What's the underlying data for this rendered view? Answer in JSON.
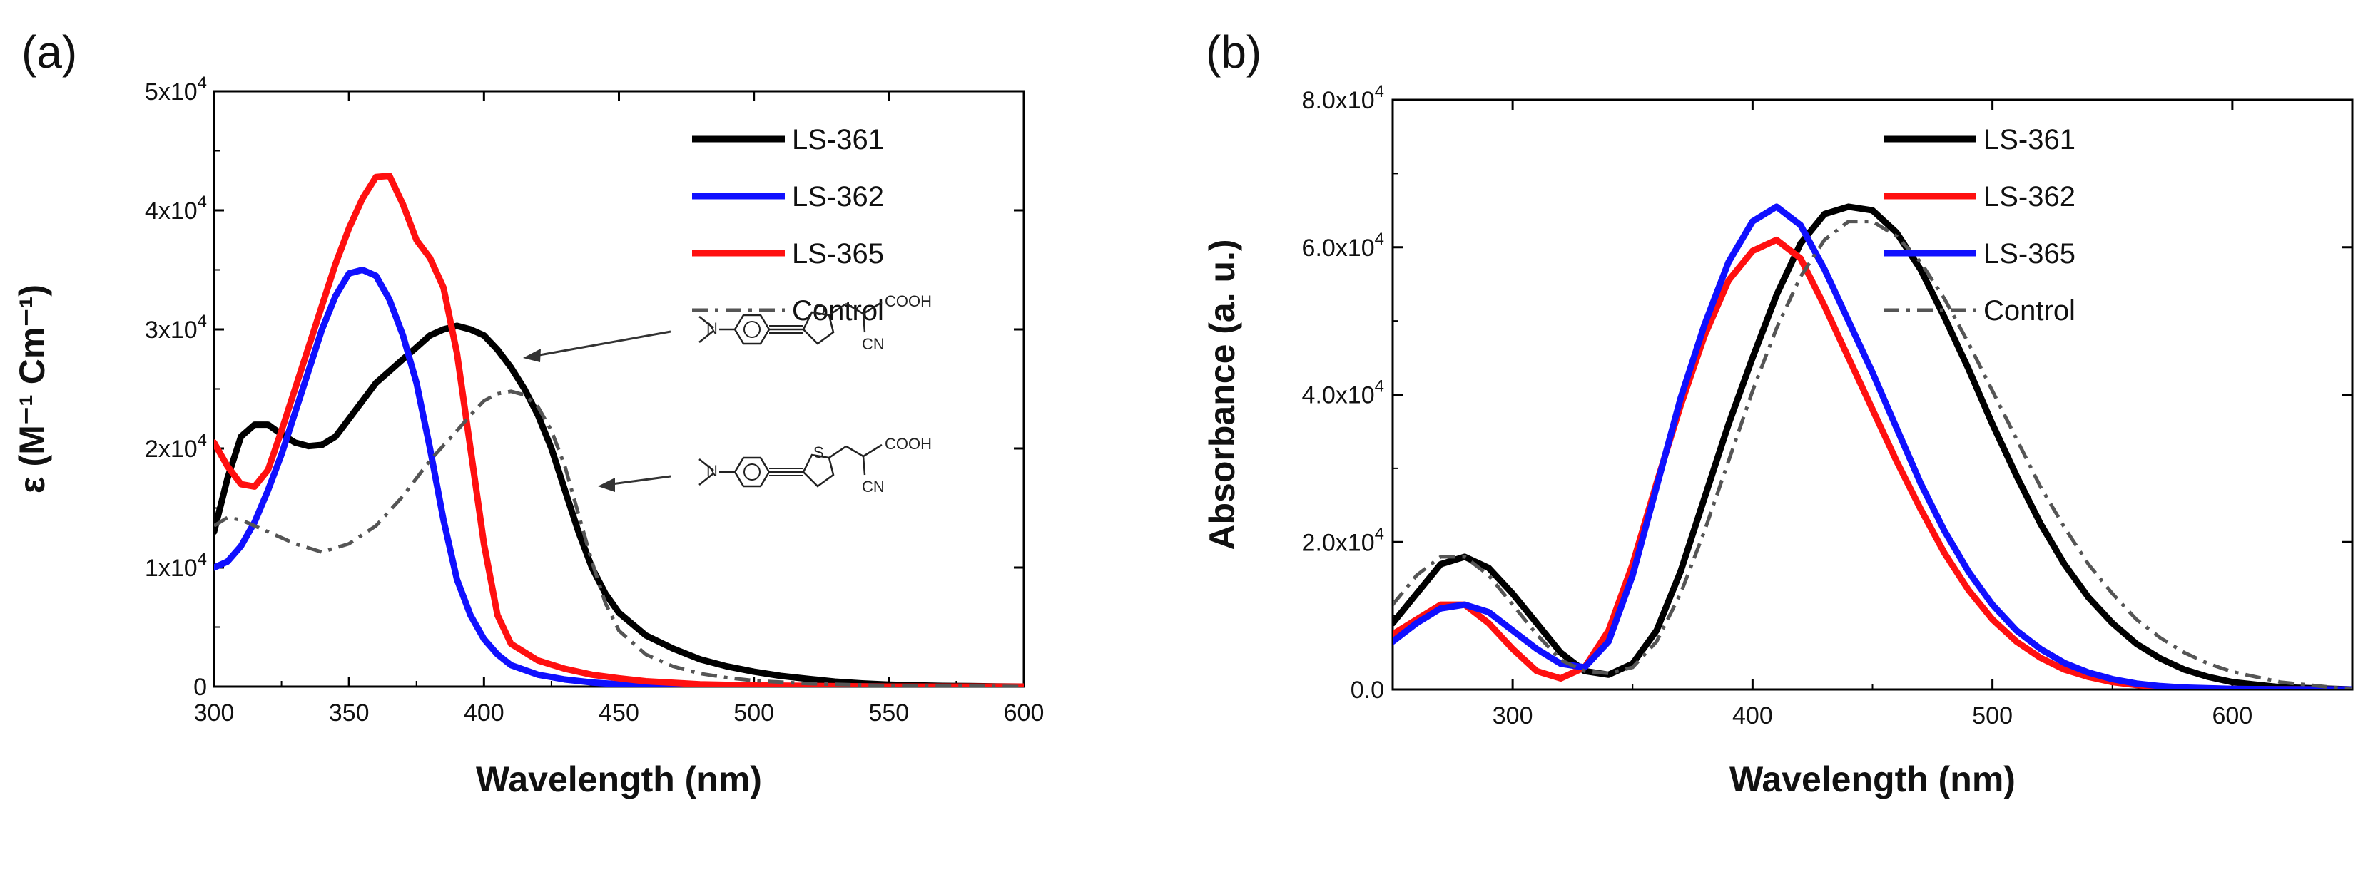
{
  "chart_data": [
    {
      "panel": "(a)",
      "type": "line",
      "xlabel": "Wavelength (nm)",
      "ylabel": "ε (M⁻¹ Cm⁻¹)",
      "xlim": [
        300,
        600
      ],
      "ylim": [
        0,
        50000
      ],
      "x_ticks": [
        300,
        350,
        400,
        450,
        500,
        550,
        600
      ],
      "x_tick_labels": [
        "300",
        "350",
        "400",
        "450",
        "500",
        "550",
        "600"
      ],
      "y_ticks": [
        0,
        10000,
        20000,
        30000,
        40000,
        50000
      ],
      "y_tick_labels": [
        {
          "base": "0",
          "exp": ""
        },
        {
          "base": "1x10",
          "exp": "4"
        },
        {
          "base": "2x10",
          "exp": "4"
        },
        {
          "base": "3x10",
          "exp": "4"
        },
        {
          "base": "4x10",
          "exp": "4"
        },
        {
          "base": "5x10",
          "exp": "4"
        }
      ],
      "legend_position": "top-right",
      "series": [
        {
          "name": "LS-361",
          "color": "#000000",
          "style": "solid",
          "x": [
            300,
            305,
            310,
            315,
            320,
            325,
            330,
            335,
            340,
            345,
            350,
            355,
            360,
            365,
            370,
            375,
            380,
            385,
            390,
            395,
            400,
            405,
            410,
            415,
            420,
            425,
            430,
            435,
            440,
            445,
            450,
            460,
            470,
            480,
            490,
            500,
            510,
            520,
            530,
            540,
            550,
            560,
            570,
            580,
            590,
            600
          ],
          "y": [
            13000,
            17500,
            21000,
            22000,
            22000,
            21200,
            20500,
            20200,
            20300,
            21000,
            22500,
            24000,
            25500,
            26500,
            27500,
            28500,
            29500,
            30000,
            30300,
            30000,
            29500,
            28300,
            26800,
            25000,
            22800,
            20000,
            16500,
            13000,
            10000,
            7800,
            6200,
            4300,
            3200,
            2300,
            1700,
            1250,
            900,
            650,
            420,
            270,
            170,
            100,
            60,
            40,
            20,
            0
          ]
        },
        {
          "name": "LS-362",
          "color": "#1010ff",
          "style": "solid",
          "x": [
            300,
            305,
            310,
            315,
            320,
            325,
            330,
            335,
            340,
            345,
            350,
            355,
            360,
            365,
            370,
            375,
            380,
            385,
            390,
            395,
            400,
            405,
            410,
            420,
            430,
            440,
            450,
            460,
            480,
            500,
            550,
            600
          ],
          "y": [
            10000,
            10500,
            11800,
            13800,
            16500,
            19500,
            23000,
            26500,
            30000,
            32800,
            34700,
            35000,
            34500,
            32500,
            29500,
            25500,
            20000,
            14000,
            9000,
            6000,
            4000,
            2700,
            1800,
            1000,
            600,
            350,
            200,
            120,
            60,
            30,
            0,
            0
          ]
        },
        {
          "name": "LS-365",
          "color": "#ff1010",
          "style": "solid",
          "x": [
            300,
            305,
            310,
            315,
            320,
            325,
            330,
            335,
            340,
            345,
            350,
            355,
            360,
            365,
            370,
            375,
            380,
            385,
            390,
            395,
            400,
            405,
            410,
            420,
            430,
            440,
            450,
            460,
            480,
            500,
            550,
            600
          ],
          "y": [
            20500,
            18500,
            17000,
            16800,
            18200,
            21500,
            25000,
            28500,
            32000,
            35500,
            38500,
            41000,
            42800,
            42900,
            40500,
            37500,
            36000,
            33500,
            28000,
            20000,
            12000,
            6000,
            3600,
            2200,
            1500,
            1000,
            700,
            450,
            200,
            100,
            0,
            0
          ]
        },
        {
          "name": "Control",
          "color": "#555555",
          "style": "dashdot",
          "x": [
            300,
            305,
            310,
            320,
            330,
            340,
            350,
            360,
            370,
            380,
            390,
            395,
            400,
            405,
            410,
            415,
            420,
            425,
            430,
            435,
            440,
            445,
            450,
            460,
            470,
            480,
            490,
            500,
            520,
            550,
            600
          ],
          "y": [
            13500,
            14200,
            14000,
            13000,
            12000,
            11300,
            12000,
            13500,
            16000,
            19000,
            21500,
            22800,
            24000,
            24600,
            24800,
            24500,
            23500,
            21500,
            18500,
            14500,
            10500,
            7000,
            4700,
            2700,
            1700,
            1100,
            750,
            500,
            250,
            80,
            0
          ]
        }
      ]
    },
    {
      "panel": "(b)",
      "type": "line",
      "xlabel": "Wavelength (nm)",
      "ylabel": "Absorbance (a. u.)",
      "xlim": [
        250,
        650
      ],
      "ylim": [
        0,
        80000
      ],
      "x_ticks": [
        300,
        400,
        500,
        600
      ],
      "x_tick_labels": [
        "300",
        "400",
        "500",
        "600"
      ],
      "y_ticks": [
        0,
        20000,
        40000,
        60000,
        80000
      ],
      "y_tick_labels": [
        {
          "base": "0.0",
          "exp": ""
        },
        {
          "base": "2.0x10",
          "exp": "4"
        },
        {
          "base": "4.0x10",
          "exp": "4"
        },
        {
          "base": "6.0x10",
          "exp": "4"
        },
        {
          "base": "8.0x10",
          "exp": "4"
        }
      ],
      "legend_position": "top-right",
      "series": [
        {
          "name": "LS-361",
          "color": "#000000",
          "style": "solid",
          "x": [
            250,
            260,
            270,
            280,
            290,
            300,
            310,
            320,
            330,
            340,
            350,
            360,
            370,
            380,
            390,
            400,
            410,
            420,
            430,
            440,
            450,
            460,
            470,
            480,
            490,
            500,
            510,
            520,
            530,
            540,
            550,
            560,
            570,
            580,
            590,
            600,
            620,
            650
          ],
          "y": [
            9000,
            13000,
            17000,
            18000,
            16500,
            13000,
            9000,
            5000,
            2500,
            2000,
            3500,
            8000,
            16000,
            26000,
            36000,
            45000,
            53500,
            60500,
            64500,
            65500,
            65000,
            62000,
            57000,
            50500,
            43500,
            36000,
            29000,
            22500,
            17000,
            12500,
            9000,
            6200,
            4200,
            2700,
            1700,
            1000,
            300,
            0
          ]
        },
        {
          "name": "LS-362",
          "color": "#ff1010",
          "style": "solid",
          "x": [
            250,
            260,
            270,
            280,
            290,
            300,
            310,
            320,
            330,
            340,
            350,
            360,
            370,
            380,
            390,
            400,
            410,
            420,
            430,
            440,
            450,
            460,
            470,
            480,
            490,
            500,
            510,
            520,
            530,
            540,
            550,
            560,
            570,
            580,
            600,
            620,
            650
          ],
          "y": [
            7500,
            9500,
            11500,
            11500,
            9000,
            5500,
            2500,
            1500,
            3000,
            8000,
            17000,
            28000,
            38500,
            48000,
            55500,
            59500,
            61000,
            58500,
            52000,
            45000,
            38000,
            31000,
            24500,
            18500,
            13500,
            9500,
            6500,
            4300,
            2700,
            1700,
            1000,
            600,
            350,
            200,
            60,
            20,
            0
          ]
        },
        {
          "name": "LS-365",
          "color": "#1010ff",
          "style": "solid",
          "x": [
            250,
            260,
            270,
            280,
            290,
            300,
            310,
            320,
            330,
            340,
            350,
            360,
            370,
            380,
            390,
            400,
            410,
            420,
            430,
            440,
            450,
            460,
            470,
            480,
            490,
            500,
            510,
            520,
            530,
            540,
            550,
            560,
            570,
            580,
            600,
            620,
            650
          ],
          "y": [
            6500,
            9000,
            11000,
            11500,
            10500,
            8000,
            5500,
            3500,
            3000,
            6500,
            15500,
            27500,
            39500,
            49500,
            58000,
            63500,
            65500,
            63000,
            57000,
            50000,
            43000,
            35500,
            28000,
            21500,
            16000,
            11500,
            8000,
            5500,
            3600,
            2300,
            1400,
            800,
            450,
            250,
            80,
            20,
            0
          ]
        },
        {
          "name": "Control",
          "color": "#555555",
          "style": "dashdot",
          "x": [
            250,
            260,
            270,
            280,
            290,
            300,
            310,
            320,
            330,
            340,
            350,
            360,
            370,
            380,
            390,
            400,
            410,
            420,
            430,
            440,
            450,
            460,
            470,
            480,
            490,
            500,
            510,
            520,
            530,
            540,
            550,
            560,
            570,
            580,
            590,
            600,
            620,
            650
          ],
          "y": [
            11500,
            15500,
            18000,
            18000,
            15500,
            11500,
            7500,
            4000,
            2500,
            2200,
            3000,
            6500,
            13000,
            21500,
            31000,
            40500,
            49000,
            56000,
            61000,
            63500,
            63500,
            61500,
            58000,
            53000,
            47000,
            40500,
            34000,
            27500,
            22000,
            17000,
            13000,
            9500,
            7000,
            5000,
            3500,
            2400,
            1000,
            0
          ]
        }
      ]
    }
  ],
  "structures": {
    "furan": {
      "acid": "COOH",
      "nitrile": "CN",
      "heteroatom": "O",
      "amine": "N"
    },
    "thiophene": {
      "acid": "COOH",
      "nitrile": "CN",
      "heteroatom": "S",
      "amine": "N"
    }
  }
}
